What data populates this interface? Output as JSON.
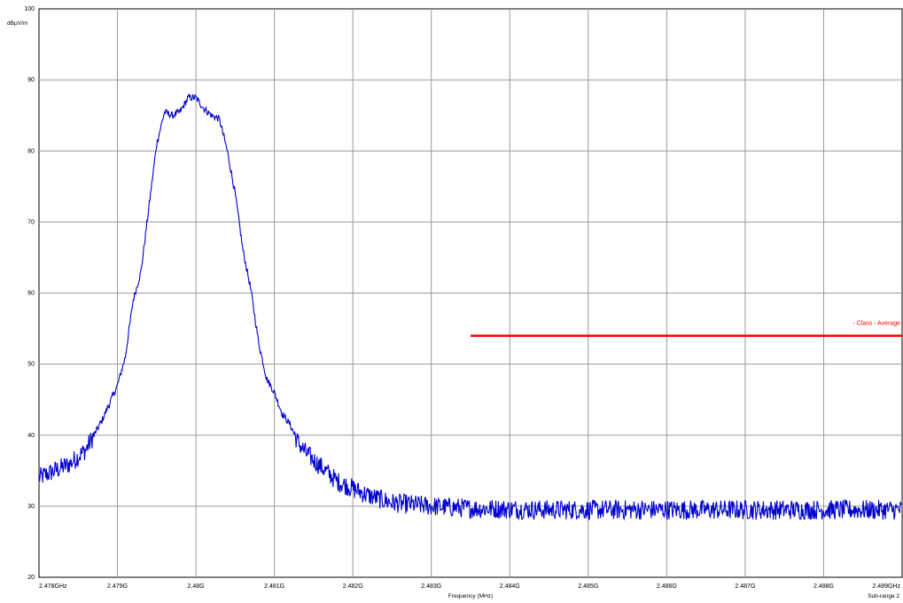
{
  "chart_data": {
    "type": "line",
    "ylabel": "dBµV/m",
    "xlabel": "Frequency (MHz)",
    "range_label": "Sub-range 2",
    "xlim": [
      2.478,
      2.489
    ],
    "ylim": [
      20,
      100
    ],
    "grid": true,
    "x_ticks": [
      2.478,
      2.479,
      2.48,
      2.481,
      2.482,
      2.483,
      2.484,
      2.485,
      2.486,
      2.487,
      2.488,
      2.489
    ],
    "x_tick_labels": [
      "2.478GHz",
      "2.479G",
      "2.48G",
      "2.481G",
      "2.482G",
      "2.483G",
      "2.484G",
      "2.485G",
      "2.486G",
      "2.487G",
      "2.488G",
      "2.489GHz"
    ],
    "y_ticks": [
      20,
      30,
      40,
      50,
      60,
      70,
      80,
      90,
      100
    ],
    "y_tick_labels": [
      "20",
      "30",
      "40",
      "50",
      "60",
      "70",
      "80",
      "90",
      "100"
    ],
    "series": [
      {
        "color": "#0000cc",
        "x": [
          2.478,
          2.4782,
          2.4784,
          2.4786,
          2.4788,
          2.479,
          2.4791,
          2.4792,
          2.4793,
          2.4794,
          2.4795,
          2.4796,
          2.4797,
          2.4798,
          2.4799,
          2.48,
          2.4801,
          2.4802,
          2.4803,
          2.4804,
          2.4805,
          2.4806,
          2.4807,
          2.4808,
          2.4809,
          2.481,
          2.4811,
          2.4812,
          2.4813,
          2.4814,
          2.4815,
          2.4816,
          2.4817,
          2.4818,
          2.482,
          2.4822,
          2.4825,
          2.483,
          2.4835,
          2.484,
          2.4845,
          2.485,
          2.4855,
          2.486,
          2.4865,
          2.487,
          2.4875,
          2.488,
          2.4885,
          2.489
        ],
        "y": [
          34,
          35,
          36,
          38,
          42,
          47,
          51,
          59,
          63,
          72,
          81,
          85.5,
          85,
          85.5,
          87.5,
          87.5,
          86,
          85,
          84.5,
          80,
          74,
          66,
          60.5,
          53,
          48,
          46,
          43,
          41.5,
          39,
          37.5,
          36.5,
          35.5,
          34.5,
          33.5,
          32.5,
          31.5,
          30.5,
          30,
          29.7,
          29.6,
          29.5,
          29.5,
          29.5,
          29.5,
          29.5,
          29.5,
          29.5,
          29.5,
          29.5,
          29.5
        ]
      }
    ],
    "limit": {
      "name": "- Class - Average",
      "color": "#ff0000",
      "x_start": 2.4835,
      "x_end": 2.489,
      "y": 54
    }
  }
}
